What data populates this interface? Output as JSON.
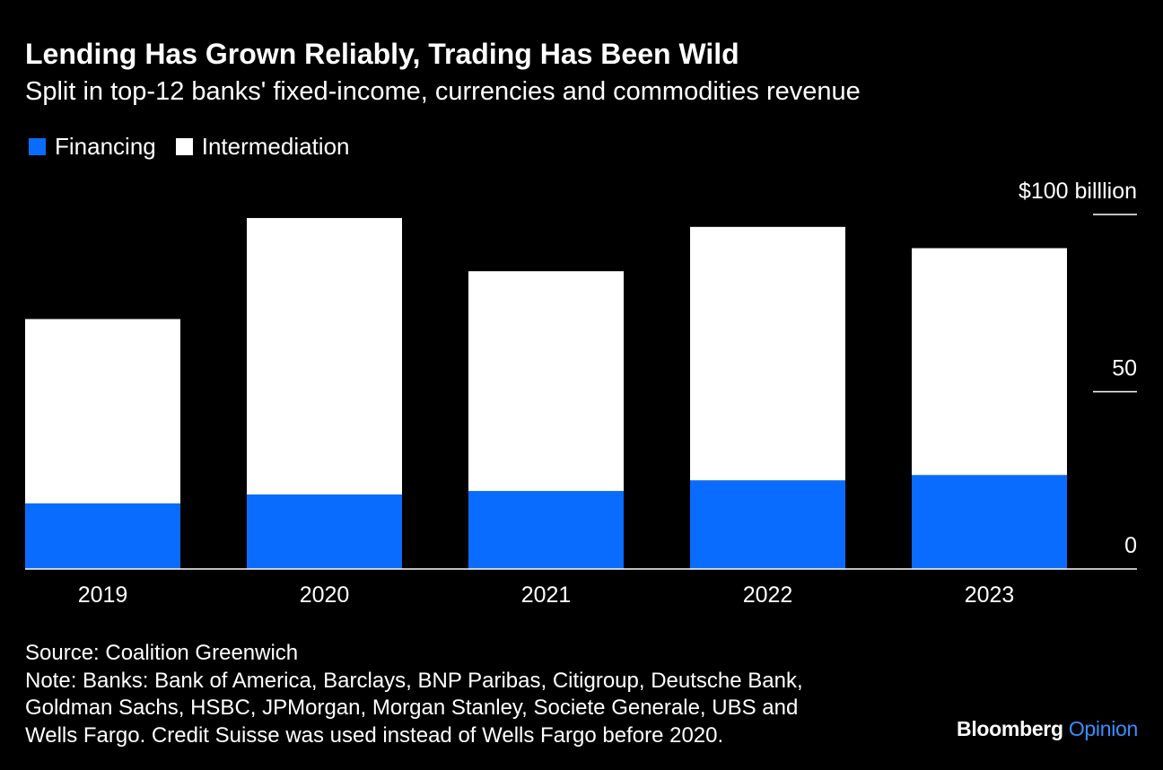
{
  "colors": {
    "financing": "#0a6cff",
    "intermediation": "#ffffff",
    "background": "#000000",
    "text": "#ffffff",
    "opinion": "#3a8dff"
  },
  "header": {
    "title": "Lending Has Grown Reliably, Trading Has Been Wild",
    "subtitle": "Split in top-12 banks' fixed-income, currencies and commodities revenue"
  },
  "chart_data": {
    "type": "bar",
    "stacked": true,
    "categories": [
      "2019",
      "2020",
      "2021",
      "2022",
      "2023"
    ],
    "series": [
      {
        "name": "Financing",
        "values": [
          18.5,
          21,
          22,
          25,
          26.5
        ]
      },
      {
        "name": "Intermediation",
        "values": [
          52,
          78,
          62,
          71.5,
          64
        ]
      }
    ],
    "ylim": [
      0,
      100
    ],
    "yticks": [
      {
        "value": 100,
        "label": "$100 billlion"
      },
      {
        "value": 50,
        "label": "50"
      },
      {
        "value": 0,
        "label": "0"
      }
    ],
    "legend_position": "top-left",
    "grid": false
  },
  "footer": {
    "source": "Source: Coalition Greenwich",
    "note_lines": [
      "Note: Banks: Bank of America, Barclays, BNP Paribas, Citigroup, Deutsche Bank,",
      "Goldman Sachs, HSBC, JPMorgan, Morgan Stanley, Societe Generale, UBS and",
      "Wells Fargo. Credit Suisse was used instead of Wells Fargo before 2020."
    ]
  },
  "brand": {
    "name": "Bloomberg",
    "section": "Opinion"
  }
}
